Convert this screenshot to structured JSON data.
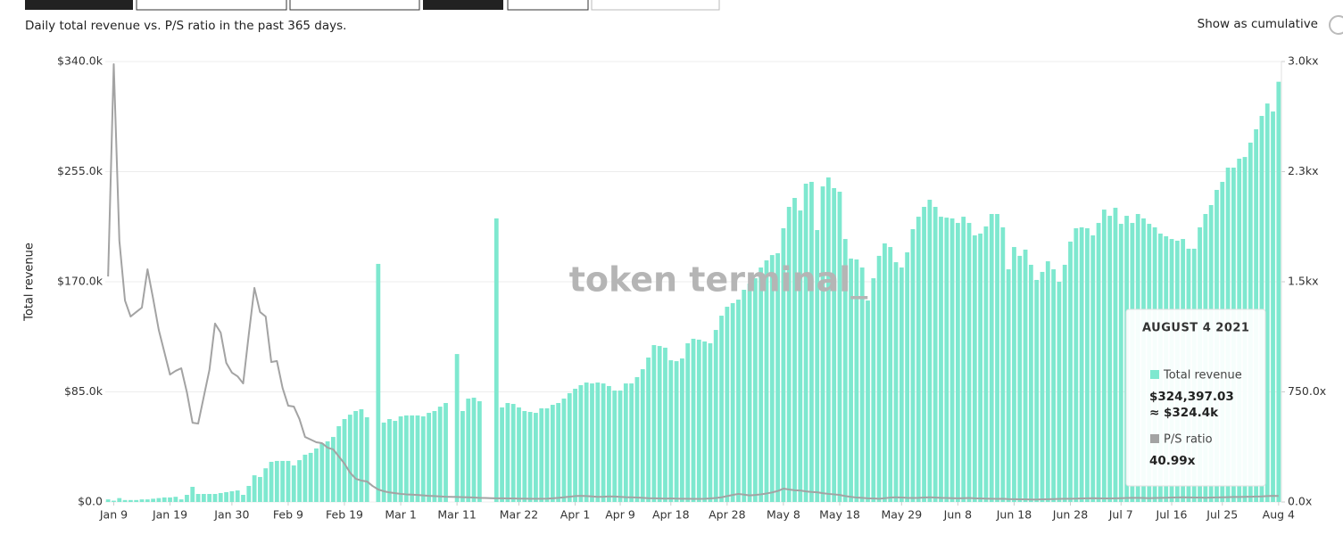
{
  "chart_data": {
    "type": "bar-line",
    "subtitle": "Daily total revenue vs. P/S ratio in the past 365 days.",
    "toggle_label": "Show as cumulative",
    "ylabel": "Total revenue",
    "watermark": "token terminal_",
    "ylim": [
      0,
      340000
    ],
    "yticks": [
      {
        "value": 0,
        "label": "$0.0"
      },
      {
        "value": 85000,
        "label": "$85.0k"
      },
      {
        "value": 170000,
        "label": "$170.0k"
      },
      {
        "value": 255000,
        "label": "$255.0k"
      },
      {
        "value": 340000,
        "label": "$340.0k"
      }
    ],
    "y2lim": [
      0,
      3000
    ],
    "y2ticks": [
      {
        "value": 0,
        "label": "0.0x"
      },
      {
        "value": 750,
        "label": "750.0x"
      },
      {
        "value": 1500,
        "label": "1.5kx"
      },
      {
        "value": 2250,
        "label": "2.3kx"
      },
      {
        "value": 3000,
        "label": "3.0kx"
      }
    ],
    "grid": true,
    "categories": [
      null,
      "Jan 9",
      null,
      null,
      null,
      null,
      null,
      null,
      null,
      null,
      null,
      "Jan 19",
      null,
      null,
      null,
      null,
      null,
      null,
      null,
      null,
      null,
      null,
      "Jan 30",
      null,
      null,
      null,
      null,
      null,
      null,
      null,
      null,
      null,
      "Feb 9",
      null,
      null,
      null,
      null,
      null,
      null,
      null,
      null,
      null,
      "Feb 19",
      null,
      null,
      null,
      null,
      null,
      null,
      null,
      null,
      null,
      "Mar 1",
      null,
      null,
      null,
      null,
      null,
      null,
      null,
      null,
      null,
      "Mar 11",
      null,
      null,
      null,
      null,
      null,
      null,
      null,
      null,
      null,
      null,
      "Mar 22",
      null,
      null,
      null,
      null,
      null,
      null,
      null,
      null,
      null,
      "Apr 1",
      null,
      null,
      null,
      null,
      null,
      null,
      null,
      "Apr 9",
      null,
      null,
      null,
      null,
      null,
      null,
      null,
      null,
      "Apr 18",
      null,
      null,
      null,
      null,
      null,
      null,
      null,
      null,
      null,
      "Apr 28",
      null,
      null,
      null,
      null,
      null,
      null,
      null,
      null,
      null,
      "May 8",
      null,
      null,
      null,
      null,
      null,
      null,
      null,
      null,
      null,
      "May 18",
      null,
      null,
      null,
      null,
      null,
      null,
      null,
      null,
      null,
      null,
      "May 29",
      null,
      null,
      null,
      null,
      null,
      null,
      null,
      null,
      null,
      "Jun 8",
      null,
      null,
      null,
      null,
      null,
      null,
      null,
      null,
      null,
      "Jun 18",
      null,
      null,
      null,
      null,
      null,
      null,
      null,
      null,
      null,
      "Jun 28",
      null,
      null,
      null,
      null,
      null,
      null,
      null,
      null,
      "Jul 7",
      null,
      null,
      null,
      null,
      null,
      null,
      null,
      null,
      "Jul 16",
      null,
      null,
      null,
      null,
      null,
      null,
      null,
      null,
      "Jul 25",
      null,
      null,
      null,
      null,
      null,
      null,
      null,
      null,
      null,
      "Aug 4"
    ],
    "series": [
      {
        "name": "Total revenue",
        "color": "#7ee8cf",
        "values": [
          2000,
          1000,
          3000,
          1500,
          1500,
          1500,
          2000,
          2000,
          2500,
          3000,
          3500,
          3500,
          4000,
          2000,
          5500,
          11700,
          6200,
          6200,
          6200,
          6200,
          6900,
          7600,
          8300,
          8900,
          5500,
          12400,
          20600,
          19300,
          26000,
          31000,
          31700,
          31700,
          31700,
          28200,
          32300,
          36500,
          37900,
          41300,
          45400,
          46800,
          50200,
          58500,
          64000,
          67400,
          70200,
          71600,
          65400,
          null,
          183800,
          61300,
          64000,
          62600,
          66100,
          66800,
          66800,
          66800,
          66100,
          68800,
          70200,
          73600,
          76400,
          null,
          114200,
          70200,
          79800,
          80500,
          77800,
          null,
          null,
          218900,
          73000,
          76400,
          75700,
          73000,
          70200,
          69500,
          68800,
          72300,
          72300,
          75000,
          76400,
          79800,
          84000,
          87400,
          90200,
          92200,
          91500,
          92200,
          91500,
          89500,
          86000,
          86000,
          91500,
          91500,
          96400,
          102500,
          111500,
          121100,
          120400,
          119100,
          109400,
          108700,
          110800,
          122500,
          126000,
          125300,
          123900,
          122500,
          132800,
          143800,
          150700,
          153500,
          156200,
          163800,
          168600,
          172700,
          181000,
          186500,
          190600,
          192000,
          211300,
          227800,
          234700,
          225000,
          245700,
          247100,
          209900,
          243600,
          250500,
          242300,
          239500,
          203000,
          187900,
          187200,
          181000,
          155500,
          172700,
          190000,
          199600,
          196800,
          185100,
          181000,
          192700,
          210600,
          220200,
          227800,
          233300,
          227800,
          220200,
          219500,
          218900,
          215400,
          220200,
          215400,
          205800,
          207200,
          212700,
          222300,
          222300,
          212000,
          179600,
          196800,
          190000,
          194800,
          183100,
          171400,
          177600,
          185800,
          179600,
          170000,
          183100,
          201000,
          211300,
          212000,
          211300,
          205800,
          215400,
          225700,
          220900,
          227100,
          214700,
          220900,
          215400,
          222300,
          218900,
          214700,
          212000,
          207200,
          205100,
          203000,
          201700,
          203000,
          195500,
          195500,
          212000,
          222300,
          229200,
          240900,
          247100,
          258100,
          258100,
          265000,
          266300,
          277400,
          287700,
          298000,
          307600,
          301400,
          324397.03
        ]
      },
      {
        "name": "P/S ratio",
        "color": "#a3a3a3",
        "axis": "y2",
        "values": [
          1536,
          2982,
          1779,
          1372,
          1263,
          1294,
          1324,
          1585,
          1385,
          1172,
          1020,
          868,
          893,
          911,
          747,
          540,
          534,
          717,
          899,
          1215,
          1154,
          947,
          881,
          856,
          808,
          1142,
          1458,
          1294,
          1263,
          953,
          960,
          777,
          656,
          650,
          565,
          443,
          425,
          407,
          401,
          370,
          358,
          310,
          261,
          200,
          158,
          146,
          140,
          109,
          85,
          73,
          65,
          60,
          55,
          52,
          50,
          48,
          45,
          42,
          40,
          38,
          36,
          35,
          34,
          33,
          32,
          30,
          28,
          27,
          26,
          25,
          25,
          24,
          24,
          23,
          23,
          22,
          22,
          22,
          23,
          25,
          28,
          32,
          36,
          40,
          42,
          40,
          38,
          35,
          36,
          38,
          37,
          35,
          33,
          32,
          30,
          28,
          26,
          25,
          24,
          23,
          24,
          23,
          22,
          22,
          21,
          21,
          22,
          24,
          27,
          32,
          40,
          48,
          55,
          50,
          45,
          48,
          52,
          58,
          65,
          75,
          91,
          85,
          80,
          78,
          72,
          68,
          66,
          60,
          55,
          52,
          48,
          40,
          35,
          30,
          28,
          25,
          24,
          22,
          26,
          30,
          32,
          30,
          28,
          27,
          28,
          30,
          32,
          30,
          28,
          27,
          26,
          25,
          26,
          27,
          25,
          24,
          23,
          22,
          21,
          22,
          20,
          19,
          18,
          18,
          17,
          17,
          18,
          19,
          20,
          21,
          22,
          22,
          23,
          24,
          25,
          26,
          25,
          24,
          24,
          25,
          26,
          27,
          28,
          28,
          27,
          26,
          27,
          28,
          29,
          30,
          31,
          32,
          31,
          30,
          30,
          29,
          30,
          31,
          32,
          33,
          34,
          34,
          35,
          36,
          37,
          38,
          40,
          42,
          40.99
        ]
      }
    ],
    "tooltip": {
      "title": "AUGUST 4 2021",
      "revenue": "$324,397.03",
      "revenue_short": "≈ $324.4k",
      "ratio": "40.99x"
    }
  }
}
